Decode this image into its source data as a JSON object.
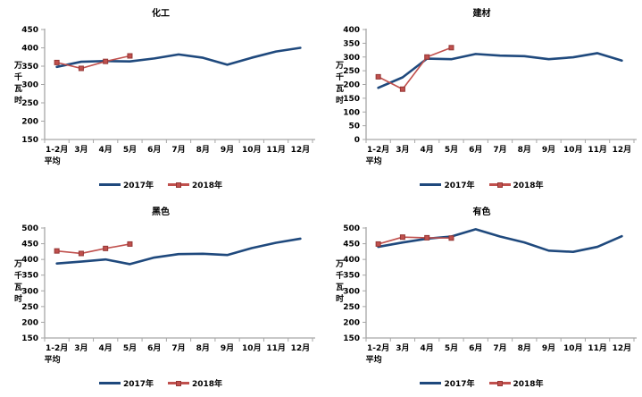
{
  "page": {
    "background": "#FFFFFF"
  },
  "colors": {
    "axis": "#A6A6A6",
    "text": "#000000",
    "series_2017": "#1F497D",
    "series_2018": "#C0504D",
    "series_2018_marker_border": "#943634"
  },
  "chart_data": [
    {
      "type": "line",
      "title": "化工",
      "ylabel": "万千瓦时",
      "xlabel": "",
      "ylim": [
        150,
        450
      ],
      "yticks": [
        150,
        200,
        250,
        300,
        350,
        400,
        450
      ],
      "grid": false,
      "legend_position": "bottom",
      "categories": [
        "1-2月\n平均",
        "3月",
        "4月",
        "5月",
        "6月",
        "7月",
        "8月",
        "9月",
        "10月",
        "11月",
        "12月"
      ],
      "series": [
        {
          "name": "2017年",
          "color": "#1F497D",
          "marker": false,
          "values": [
            348,
            362,
            364,
            363,
            371,
            382,
            373,
            354,
            373,
            390,
            400
          ]
        },
        {
          "name": "2018年",
          "color": "#C0504D",
          "marker": true,
          "marker_border": "#943634",
          "values": [
            360,
            344,
            363,
            378
          ]
        }
      ]
    },
    {
      "type": "line",
      "title": "建材",
      "ylabel": "万千瓦时",
      "xlabel": "",
      "ylim": [
        0,
        400
      ],
      "yticks": [
        0,
        50,
        100,
        150,
        200,
        250,
        300,
        350,
        400
      ],
      "grid": false,
      "legend_position": "bottom",
      "categories": [
        "1-2月\n平均",
        "3月",
        "4月",
        "5月",
        "6月",
        "7月",
        "8月",
        "9月",
        "10月",
        "11月",
        "12月"
      ],
      "series": [
        {
          "name": "2017年",
          "color": "#1F497D",
          "marker": false,
          "values": [
            188,
            226,
            294,
            292,
            311,
            305,
            303,
            292,
            299,
            314,
            287
          ]
        },
        {
          "name": "2018年",
          "color": "#C0504D",
          "marker": true,
          "marker_border": "#943634",
          "values": [
            228,
            183,
            300,
            334
          ]
        }
      ]
    },
    {
      "type": "line",
      "title": "黑色",
      "ylabel": "万千瓦时",
      "xlabel": "",
      "ylim": [
        150,
        500
      ],
      "yticks": [
        150,
        200,
        250,
        300,
        350,
        400,
        450,
        500
      ],
      "grid": false,
      "legend_position": "bottom",
      "categories": [
        "1-2月\n平均",
        "3月",
        "4月",
        "5月",
        "6月",
        "7月",
        "8月",
        "9月",
        "10月",
        "11月",
        "12月"
      ],
      "series": [
        {
          "name": "2017年",
          "color": "#1F497D",
          "marker": false,
          "values": [
            387,
            393,
            400,
            385,
            406,
            417,
            418,
            414,
            436,
            453,
            466
          ]
        },
        {
          "name": "2018年",
          "color": "#C0504D",
          "marker": true,
          "marker_border": "#943634",
          "values": [
            427,
            419,
            435,
            449
          ]
        }
      ]
    },
    {
      "type": "line",
      "title": "有色",
      "ylabel": "万千瓦时",
      "xlabel": "",
      "ylim": [
        150,
        500
      ],
      "yticks": [
        150,
        200,
        250,
        300,
        350,
        400,
        450,
        500
      ],
      "grid": false,
      "legend_position": "bottom",
      "categories": [
        "1-2月\n平均",
        "3月",
        "4月",
        "5月",
        "6月",
        "7月",
        "8月",
        "9月",
        "10月",
        "11月",
        "12月"
      ],
      "series": [
        {
          "name": "2017年",
          "color": "#1F497D",
          "marker": false,
          "values": [
            440,
            454,
            466,
            473,
            496,
            473,
            454,
            428,
            424,
            440,
            474
          ]
        },
        {
          "name": "2018年",
          "color": "#C0504D",
          "marker": true,
          "marker_border": "#943634",
          "values": [
            449,
            471,
            469,
            468
          ]
        }
      ]
    }
  ]
}
